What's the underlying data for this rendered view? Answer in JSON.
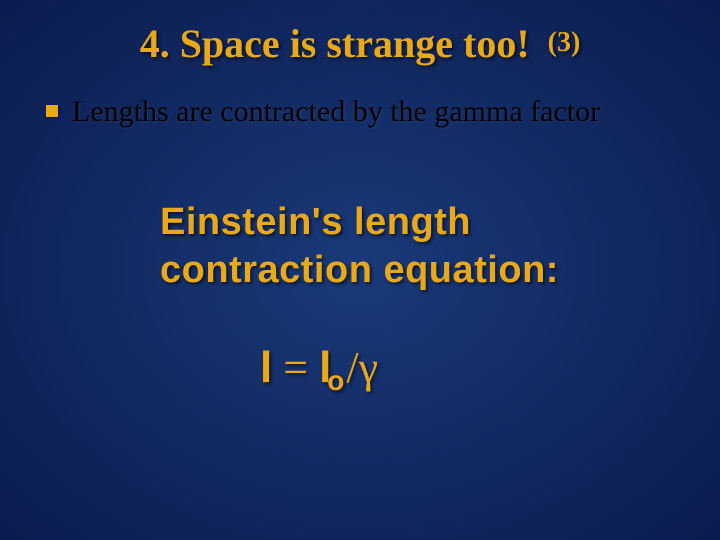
{
  "title": {
    "main": "4. Space is strange too!",
    "suffix": "(3)",
    "color": "#e8a818",
    "main_fontsize": 40,
    "suffix_fontsize": 28
  },
  "bullet": {
    "marker_color": "#e8a818",
    "text": "Lengths are contracted by the gamma factor",
    "text_color": "#000000",
    "fontsize": 30
  },
  "subheading": {
    "line1": "Einstein's length",
    "line2": "contraction equation:",
    "color": "#e8a818",
    "fontsize": 38
  },
  "equation": {
    "l": "l",
    "eq": " = ",
    "l0": "l",
    "sub_o": "o",
    "slash": "/",
    "gamma": "γ",
    "color": "#e8a818",
    "fontsize": 44
  },
  "background": {
    "colors": [
      "#1a3a7a",
      "#0d2155",
      "#061240",
      "#020818"
    ]
  }
}
